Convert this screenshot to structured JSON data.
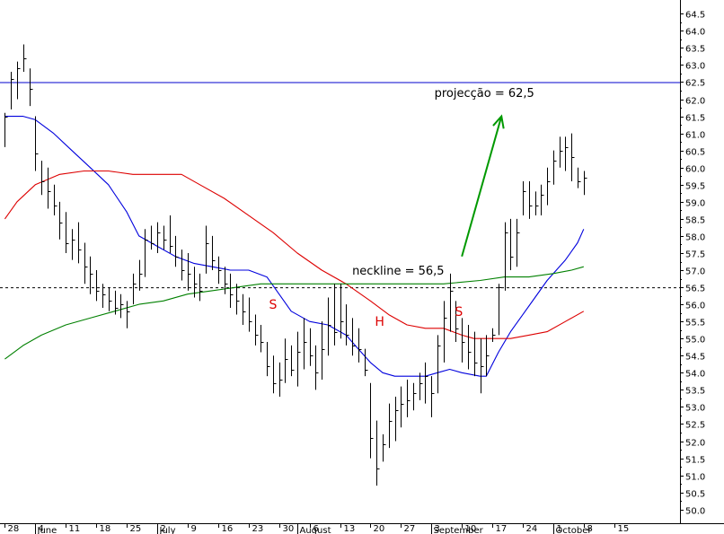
{
  "chart_data": {
    "type": "ohlc",
    "ylim": [
      49.6,
      64.9
    ],
    "xlim": [
      -0.8,
      110.8
    ],
    "grid": false,
    "axes": {
      "y_ticks": [
        "64.5",
        "64.0",
        "63.5",
        "63.0",
        "62.5",
        "62.0",
        "61.5",
        "61.0",
        "60.5",
        "60.0",
        "59.5",
        "59.0",
        "58.5",
        "58.0",
        "57.5",
        "57.0",
        "56.5",
        "56.0",
        "55.5",
        "55.0",
        "54.5",
        "54.0",
        "53.5",
        "53.0",
        "52.5",
        "52.0",
        "51.5",
        "51.0",
        "50.5",
        "50.0"
      ],
      "x_ticks": [
        {
          "x": 0,
          "label": "28"
        },
        {
          "x": 5,
          "label": "4"
        },
        {
          "x": 10,
          "label": "11"
        },
        {
          "x": 15,
          "label": "18"
        },
        {
          "x": 20,
          "label": "25"
        },
        {
          "x": 25,
          "label": "2"
        },
        {
          "x": 30,
          "label": "9"
        },
        {
          "x": 35,
          "label": "16"
        },
        {
          "x": 40,
          "label": "23"
        },
        {
          "x": 45,
          "label": "30"
        },
        {
          "x": 50,
          "label": "6"
        },
        {
          "x": 55,
          "label": "13"
        },
        {
          "x": 60,
          "label": "20"
        },
        {
          "x": 65,
          "label": "27"
        },
        {
          "x": 70,
          "label": "3"
        },
        {
          "x": 75,
          "label": "10"
        },
        {
          "x": 80,
          "label": "17"
        },
        {
          "x": 85,
          "label": "24"
        },
        {
          "x": 90,
          "label": "1"
        },
        {
          "x": 95,
          "label": "8"
        },
        {
          "x": 100,
          "label": "15"
        }
      ],
      "months": [
        {
          "x": 5,
          "label": "June"
        },
        {
          "x": 25,
          "label": "July"
        },
        {
          "x": 48,
          "label": "August"
        },
        {
          "x": 70,
          "label": "September"
        },
        {
          "x": 90,
          "label": "October"
        }
      ]
    },
    "series": [
      {
        "type": "ohlc",
        "bars": [
          [
            0,
            61.6,
            60.6,
            61.5
          ],
          [
            1,
            62.8,
            61.7,
            62.6
          ],
          [
            2,
            63.1,
            62.0,
            62.9
          ],
          [
            3,
            63.6,
            62.8,
            63.2
          ],
          [
            4,
            62.9,
            61.8,
            62.3
          ],
          [
            5,
            61.5,
            59.9,
            60.4
          ],
          [
            6,
            60.2,
            59.2,
            59.6
          ],
          [
            7,
            60.0,
            58.8,
            59.3
          ],
          [
            8,
            59.5,
            58.6,
            58.9
          ],
          [
            9,
            59.0,
            57.9,
            58.4
          ],
          [
            10,
            58.7,
            57.5,
            57.8
          ],
          [
            11,
            58.2,
            57.3,
            57.9
          ],
          [
            12,
            58.4,
            57.2,
            57.6
          ],
          [
            13,
            57.8,
            56.6,
            57.1
          ],
          [
            14,
            57.4,
            56.3,
            56.9
          ],
          [
            15,
            57.0,
            56.1,
            56.4
          ],
          [
            16,
            56.6,
            55.9,
            56.3
          ],
          [
            17,
            56.5,
            55.8,
            56.1
          ],
          [
            18,
            56.4,
            55.7,
            55.9
          ],
          [
            19,
            56.3,
            55.6,
            56.0
          ],
          [
            20,
            56.1,
            55.3,
            55.8
          ],
          [
            21,
            56.9,
            56.0,
            56.6
          ],
          [
            22,
            57.3,
            56.4,
            56.9
          ],
          [
            23,
            58.2,
            56.8,
            57.9
          ],
          [
            24,
            58.3,
            57.6,
            57.8
          ],
          [
            25,
            58.4,
            57.5,
            58.1
          ],
          [
            26,
            58.3,
            57.6,
            57.9
          ],
          [
            27,
            58.6,
            57.5,
            57.7
          ],
          [
            28,
            58.0,
            57.1,
            57.4
          ],
          [
            29,
            57.6,
            56.7,
            57.0
          ],
          [
            30,
            57.5,
            56.4,
            56.9
          ],
          [
            31,
            57.1,
            56.2,
            56.6
          ],
          [
            32,
            56.9,
            56.1,
            56.4
          ],
          [
            33,
            58.3,
            56.9,
            57.8
          ],
          [
            34,
            58.0,
            57.0,
            57.3
          ],
          [
            35,
            57.4,
            56.6,
            57.0
          ],
          [
            36,
            57.1,
            56.3,
            56.6
          ],
          [
            37,
            56.9,
            55.9,
            56.3
          ],
          [
            38,
            56.6,
            55.7,
            56.1
          ],
          [
            39,
            56.3,
            55.4,
            55.8
          ],
          [
            40,
            56.2,
            55.2,
            55.5
          ],
          [
            41,
            55.7,
            54.8,
            55.1
          ],
          [
            42,
            55.4,
            54.6,
            54.9
          ],
          [
            43,
            54.9,
            53.9,
            54.2
          ],
          [
            44,
            54.5,
            53.4,
            53.7
          ],
          [
            45,
            54.3,
            53.3,
            53.8
          ],
          [
            46,
            55.0,
            53.7,
            54.4
          ],
          [
            47,
            54.8,
            53.9,
            54.1
          ],
          [
            48,
            55.2,
            53.6,
            54.6
          ],
          [
            49,
            55.6,
            54.1,
            54.9
          ],
          [
            50,
            55.3,
            54.2,
            54.5
          ],
          [
            51,
            54.8,
            53.5,
            54.0
          ],
          [
            52,
            55.5,
            53.8,
            54.7
          ],
          [
            53,
            56.2,
            54.5,
            55.4
          ],
          [
            54,
            56.6,
            54.8,
            55.2
          ],
          [
            55,
            56.6,
            55.0,
            55.5
          ],
          [
            56,
            56.0,
            54.8,
            55.1
          ],
          [
            57,
            55.6,
            54.5,
            54.8
          ],
          [
            58,
            55.3,
            54.3,
            54.7
          ],
          [
            59,
            54.7,
            53.9,
            54.1
          ],
          [
            60,
            53.7,
            51.5,
            52.1
          ],
          [
            61,
            52.6,
            50.7,
            51.2
          ],
          [
            62,
            52.2,
            51.4,
            51.9
          ],
          [
            63,
            53.1,
            51.8,
            52.6
          ],
          [
            64,
            53.3,
            52.0,
            52.9
          ],
          [
            65,
            53.6,
            52.4,
            53.1
          ],
          [
            66,
            53.8,
            52.7,
            53.2
          ],
          [
            67,
            53.7,
            52.9,
            53.4
          ],
          [
            68,
            54.0,
            53.2,
            53.7
          ],
          [
            69,
            54.3,
            53.1,
            53.9
          ],
          [
            70,
            53.9,
            52.7,
            53.4
          ],
          [
            71,
            55.1,
            53.4,
            54.8
          ],
          [
            72,
            56.1,
            54.3,
            55.6
          ],
          [
            73,
            56.9,
            55.2,
            56.4
          ],
          [
            74,
            56.1,
            54.9,
            55.3
          ],
          [
            75,
            55.6,
            54.3,
            54.9
          ],
          [
            76,
            55.4,
            54.1,
            54.6
          ],
          [
            77,
            55.2,
            53.9,
            54.3
          ],
          [
            78,
            55.0,
            53.4,
            54.2
          ],
          [
            79,
            55.1,
            53.9,
            54.5
          ],
          [
            80,
            55.3,
            54.9,
            55.1
          ],
          [
            81,
            56.6,
            55.1,
            56.5
          ],
          [
            82,
            58.4,
            56.4,
            58.1
          ],
          [
            83,
            58.5,
            57.0,
            57.4
          ],
          [
            84,
            58.5,
            57.1,
            58.1
          ],
          [
            85,
            59.6,
            58.6,
            59.3
          ],
          [
            86,
            59.6,
            58.5,
            58.9
          ],
          [
            87,
            59.3,
            58.6,
            58.9
          ],
          [
            88,
            59.5,
            58.6,
            59.2
          ],
          [
            89,
            60.0,
            58.9,
            59.6
          ],
          [
            90,
            60.5,
            59.5,
            60.2
          ],
          [
            91,
            60.9,
            60.0,
            60.5
          ],
          [
            92,
            60.9,
            59.9,
            60.6
          ],
          [
            93,
            61.0,
            59.6,
            60.3
          ],
          [
            94,
            60.0,
            59.4,
            59.6
          ],
          [
            95,
            59.9,
            59.2,
            59.7
          ]
        ]
      },
      {
        "type": "line",
        "color": "#0000dd",
        "points": [
          [
            0,
            61.5
          ],
          [
            3,
            61.5
          ],
          [
            5,
            61.4
          ],
          [
            8,
            61.0
          ],
          [
            11,
            60.5
          ],
          [
            14,
            60.0
          ],
          [
            17,
            59.5
          ],
          [
            20,
            58.7
          ],
          [
            22,
            58.0
          ],
          [
            25,
            57.7
          ],
          [
            28,
            57.4
          ],
          [
            31,
            57.2
          ],
          [
            34,
            57.1
          ],
          [
            37,
            57.0
          ],
          [
            40,
            57.0
          ],
          [
            43,
            56.8
          ],
          [
            45,
            56.3
          ],
          [
            47,
            55.8
          ],
          [
            50,
            55.5
          ],
          [
            53,
            55.4
          ],
          [
            56,
            55.1
          ],
          [
            58,
            54.7
          ],
          [
            60,
            54.3
          ],
          [
            62,
            54.0
          ],
          [
            64,
            53.9
          ],
          [
            66,
            53.9
          ],
          [
            69,
            53.9
          ],
          [
            71,
            54.0
          ],
          [
            73,
            54.1
          ],
          [
            75,
            54.0
          ],
          [
            78,
            53.9
          ],
          [
            79,
            53.9
          ],
          [
            81,
            54.6
          ],
          [
            83,
            55.2
          ],
          [
            85,
            55.7
          ],
          [
            87,
            56.2
          ],
          [
            89,
            56.7
          ],
          [
            92,
            57.3
          ],
          [
            94,
            57.8
          ],
          [
            95,
            58.2
          ]
        ]
      },
      {
        "type": "line",
        "color": "#dd0000",
        "points": [
          [
            0,
            58.5
          ],
          [
            2,
            59.0
          ],
          [
            5,
            59.5
          ],
          [
            9,
            59.8
          ],
          [
            13,
            59.9
          ],
          [
            17,
            59.9
          ],
          [
            21,
            59.8
          ],
          [
            25,
            59.8
          ],
          [
            29,
            59.8
          ],
          [
            32,
            59.5
          ],
          [
            36,
            59.1
          ],
          [
            40,
            58.6
          ],
          [
            44,
            58.1
          ],
          [
            48,
            57.5
          ],
          [
            52,
            57.0
          ],
          [
            56,
            56.6
          ],
          [
            60,
            56.1
          ],
          [
            63,
            55.7
          ],
          [
            66,
            55.4
          ],
          [
            69,
            55.3
          ],
          [
            72,
            55.3
          ],
          [
            75,
            55.1
          ],
          [
            77,
            55.0
          ],
          [
            80,
            55.0
          ],
          [
            83,
            55.0
          ],
          [
            86,
            55.1
          ],
          [
            89,
            55.2
          ],
          [
            92,
            55.5
          ],
          [
            95,
            55.8
          ]
        ]
      },
      {
        "type": "line",
        "color": "#008000",
        "points": [
          [
            0,
            54.4
          ],
          [
            3,
            54.8
          ],
          [
            6,
            55.1
          ],
          [
            10,
            55.4
          ],
          [
            14,
            55.6
          ],
          [
            18,
            55.8
          ],
          [
            22,
            56.0
          ],
          [
            26,
            56.1
          ],
          [
            30,
            56.3
          ],
          [
            34,
            56.4
          ],
          [
            38,
            56.5
          ],
          [
            42,
            56.6
          ],
          [
            48,
            56.6
          ],
          [
            54,
            56.6
          ],
          [
            60,
            56.6
          ],
          [
            66,
            56.6
          ],
          [
            72,
            56.6
          ],
          [
            78,
            56.7
          ],
          [
            82,
            56.8
          ],
          [
            86,
            56.8
          ],
          [
            90,
            56.9
          ],
          [
            93,
            57.0
          ],
          [
            95,
            57.1
          ]
        ]
      }
    ],
    "annotations": {
      "target_line": {
        "y": 62.5,
        "color": "#0000cc"
      },
      "neckline": {
        "y": 56.5,
        "color": "#000000",
        "dash": "dashed"
      },
      "neckline_label": {
        "text": "neckline = 56,5",
        "x": 57,
        "y": 57.0
      },
      "projection_label": {
        "text": "projecção = 62,5",
        "x": 70.5,
        "y": 62.2
      },
      "arrow": {
        "from": [
          75,
          57.4
        ],
        "to": [
          81.5,
          61.5
        ],
        "color": "#009900"
      },
      "pattern_labels": [
        {
          "text": "S",
          "x": 44,
          "y": 56.0
        },
        {
          "text": "H",
          "x": 61.5,
          "y": 55.5
        },
        {
          "text": "S",
          "x": 74.5,
          "y": 55.8
        }
      ]
    }
  }
}
